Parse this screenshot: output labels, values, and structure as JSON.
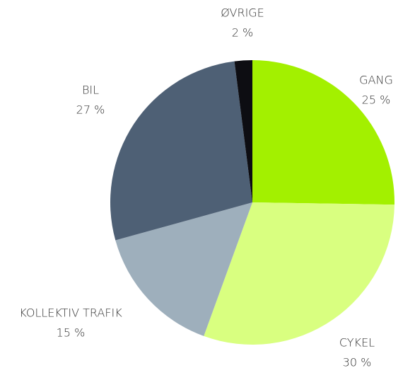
{
  "chart_data": {
    "type": "pie",
    "categories": [
      "GANG",
      "CYKEL",
      "KOLLEKTIV TRAFIK",
      "BIL",
      "ØVRIGE"
    ],
    "values": [
      25,
      30,
      15,
      27,
      2
    ],
    "value_labels": [
      "25 %",
      "30 %",
      "15 %",
      "27 %",
      "2 %"
    ],
    "colors": [
      "#a3f000",
      "#d9ff80",
      "#9eafbc",
      "#4e6075",
      "#0d0d12"
    ]
  }
}
